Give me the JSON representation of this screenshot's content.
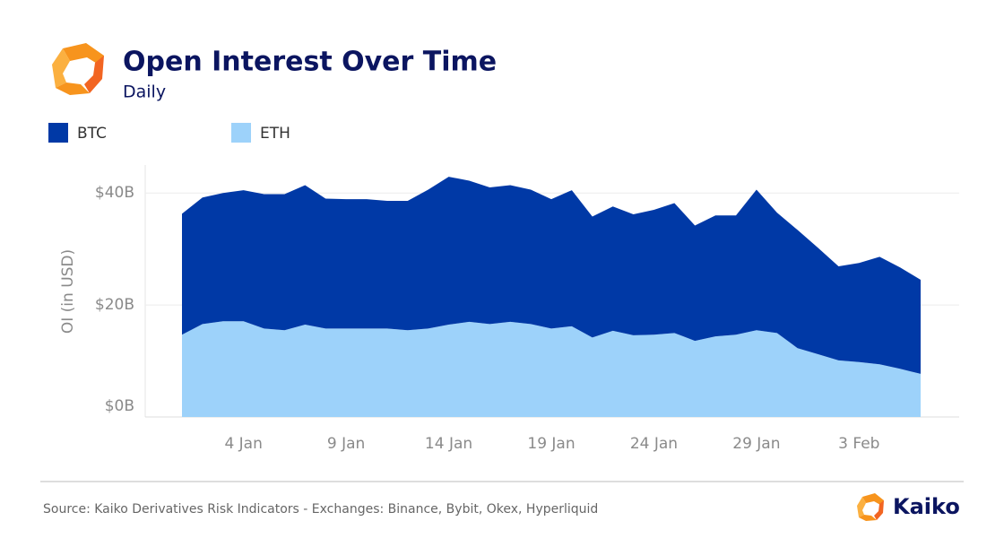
{
  "chart_data": {
    "type": "stacked_area",
    "title": "Open Interest Over Time",
    "subtitle": "Daily",
    "y_label": "OI (in USD)",
    "source": "Source: Kaiko Derivatives Risk Indicators - Exchanges: Binance, Bybit, Okex, Hyperliquid",
    "brand": "Kaiko",
    "legend_position": "top-left",
    "grid": true,
    "categories": [
      null,
      null,
      null,
      "4 Jan",
      null,
      null,
      null,
      null,
      "9 Jan",
      null,
      null,
      null,
      null,
      "14 Jan",
      null,
      null,
      null,
      null,
      "19 Jan",
      null,
      null,
      null,
      null,
      "24 Jan",
      null,
      null,
      null,
      null,
      "29 Jan",
      null,
      null,
      null,
      null,
      "3 Feb",
      null,
      null,
      null
    ],
    "series": [
      {
        "name": "BTC",
        "color": "#0039a6",
        "values": [
          21.6,
          22.6,
          22.9,
          23.4,
          24.0,
          24.3,
          24.9,
          23.2,
          23.1,
          23.1,
          22.8,
          23.1,
          24.8,
          26.4,
          25.2,
          24.4,
          24.4,
          24.0,
          23.1,
          24.3,
          21.6,
          22.2,
          21.6,
          22.3,
          23.2,
          20.6,
          21.6,
          21.3,
          25.1,
          21.5,
          21.1,
          19.0,
          16.8,
          17.7,
          19.2,
          18.1,
          16.8
        ]
      },
      {
        "name": "ETH",
        "color": "#9dd2fa",
        "values": [
          14.7,
          16.6,
          17.1,
          17.1,
          15.8,
          15.5,
          16.5,
          15.8,
          15.8,
          15.8,
          15.8,
          15.5,
          15.8,
          16.5,
          17.0,
          16.6,
          17.0,
          16.6,
          15.8,
          16.2,
          14.2,
          15.4,
          14.6,
          14.7,
          15.0,
          13.6,
          14.4,
          14.7,
          15.5,
          15.0,
          12.3,
          11.2,
          10.1,
          9.8,
          9.4,
          8.6,
          7.7
        ]
      }
    ],
    "ylim": [
      0,
      45
    ],
    "yticks": [
      {
        "value": 0,
        "label": "$0B"
      },
      {
        "value": 20,
        "label": "$20B"
      },
      {
        "value": 40,
        "label": "$40B"
      }
    ]
  }
}
